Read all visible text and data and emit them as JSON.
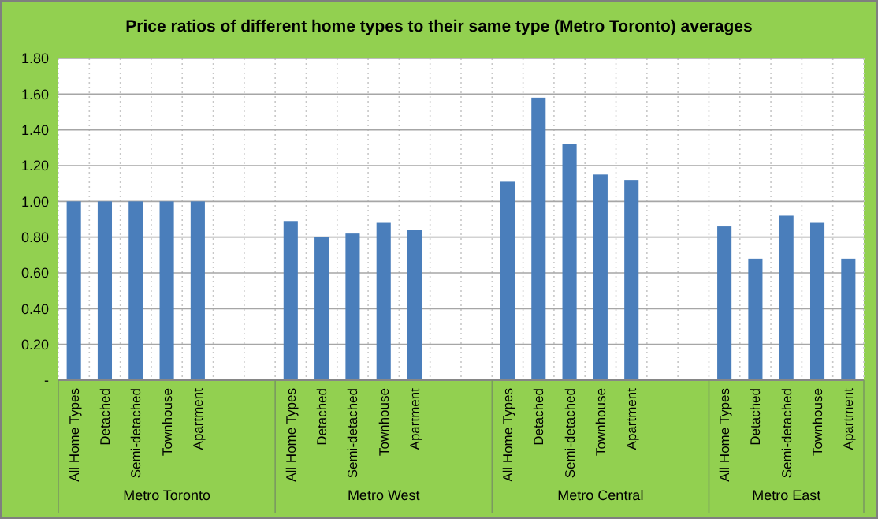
{
  "chart_data": {
    "type": "bar",
    "title": "Price ratios of different home types  to their same type (Metro Toronto) averages",
    "categories": [
      "All Home Types",
      "Detached",
      "Semi-detached",
      "Townhouse",
      "Apartment",
      null,
      null,
      "All Home Types",
      "Detached",
      "Semi-detached",
      "Townhouse",
      "Apartment",
      null,
      null,
      "All Home Types",
      "Detached",
      "Semi-detached",
      "Townhouse",
      "Apartment",
      null,
      null,
      "All Home Types",
      "Detached",
      "Semi-detached",
      "Townhouse",
      "Apartment"
    ],
    "values": [
      1.0,
      1.0,
      1.0,
      1.0,
      1.0,
      null,
      null,
      0.89,
      0.8,
      0.82,
      0.88,
      0.84,
      null,
      null,
      1.11,
      1.58,
      1.32,
      1.15,
      1.12,
      null,
      null,
      0.86,
      0.68,
      0.92,
      0.88,
      0.68
    ],
    "color": "#4a7ebb",
    "annotations": [
      "Metro Toronto",
      "Metro West",
      "Metro Central",
      "Metro East"
    ],
    "ylim": [
      0,
      1.8
    ],
    "yticks": [
      {
        "value": 0,
        "label": "-"
      },
      {
        "value": 0.2,
        "label": "0.20"
      },
      {
        "value": 0.4,
        "label": "0.40"
      },
      {
        "value": 0.6,
        "label": "0.60"
      },
      {
        "value": 0.8,
        "label": "0.80"
      },
      {
        "value": 1,
        "label": "1.00"
      },
      {
        "value": 1.2,
        "label": "1.20"
      },
      {
        "value": 1.4,
        "label": "1.40"
      },
      {
        "value": 1.6,
        "label": "1.60"
      },
      {
        "value": 1.8,
        "label": "1.80"
      }
    ],
    "grid": true
  }
}
